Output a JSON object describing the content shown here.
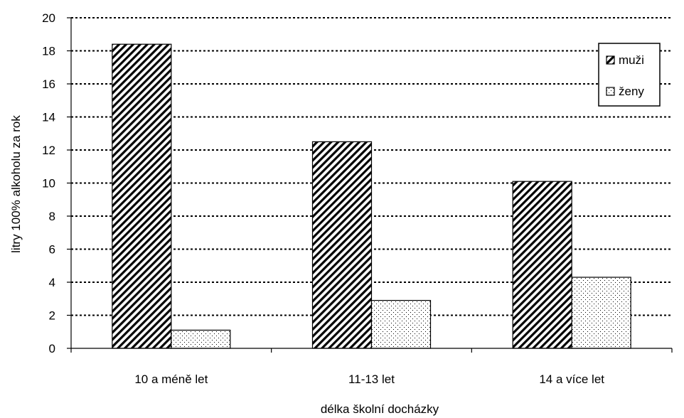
{
  "chart_data": {
    "type": "bar",
    "categories": [
      "10 a méně let",
      "11-13 let",
      "14 a více let"
    ],
    "series": [
      {
        "name": "muži",
        "values": [
          18.4,
          12.5,
          10.1
        ],
        "pattern": "diagonal-hatch"
      },
      {
        "name": "ženy",
        "values": [
          1.1,
          2.9,
          4.3
        ],
        "pattern": "dots"
      }
    ],
    "title": "",
    "xlabel": "délka školní docházky",
    "ylabel": "litry 100% alkoholu za rok",
    "ylim": [
      0,
      20
    ],
    "yticks": [
      0,
      2,
      4,
      6,
      8,
      10,
      12,
      14,
      16,
      18,
      20
    ],
    "grid": true,
    "legend_position": "top-right",
    "colors": {
      "bar_stroke": "#000000",
      "background": "#ffffff",
      "grid": "#000000"
    }
  }
}
